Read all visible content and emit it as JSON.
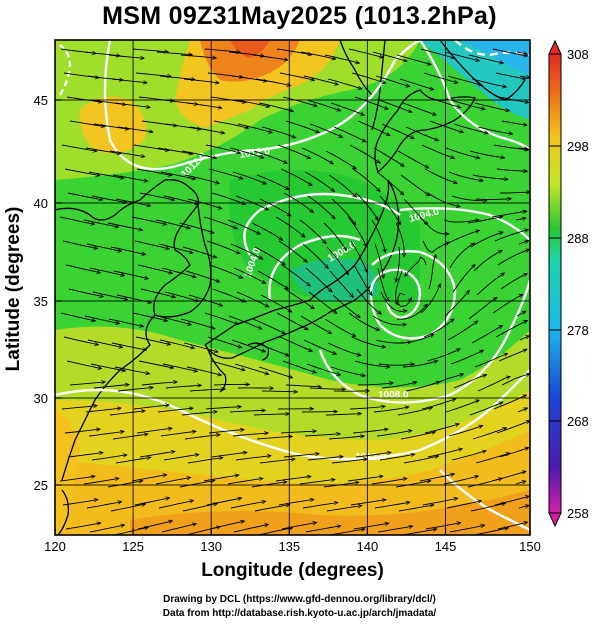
{
  "title": "MSM 09Z31May2025 (1013.2hPa)",
  "x_axis": {
    "label": "Longitude (degrees)",
    "ticks": [
      "120",
      "125",
      "130",
      "135",
      "140",
      "145",
      "150"
    ],
    "range": [
      120,
      150
    ]
  },
  "y_axis": {
    "label": "Latitude  (degrees)",
    "ticks": [
      "25",
      "30",
      "35",
      "40",
      "45"
    ],
    "range": [
      22.5,
      47.5
    ]
  },
  "colorbar": {
    "ticks": [
      "308",
      "298",
      "288",
      "278",
      "268",
      "258"
    ],
    "range": [
      258,
      308
    ],
    "colors": [
      "#d81ea8",
      "#4d1ab0",
      "#1846d8",
      "#1ab8ee",
      "#1dd6a8",
      "#27c931",
      "#c5e626",
      "#f2c41a",
      "#f06a18",
      "#e42a24"
    ]
  },
  "contour_labels": [
    "1012.0",
    "1012.0",
    "1004.0",
    "1008.0",
    "1004.0",
    "1008.0",
    "1012.0"
  ],
  "low_center": {
    "lon": 141.8,
    "lat": 34.2
  },
  "credits": [
    "Drawing by DCL (https://www.gfd-dennou.org/library/dcl/)",
    "Data from http://database.rish.kyoto-u.ac.jp/arch/jmadata/"
  ]
}
